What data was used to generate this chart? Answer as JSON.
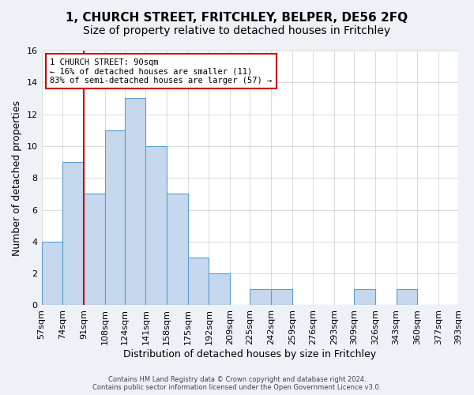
{
  "title": "1, CHURCH STREET, FRITCHLEY, BELPER, DE56 2FQ",
  "subtitle": "Size of property relative to detached houses in Fritchley",
  "xlabel": "Distribution of detached houses by size in Fritchley",
  "ylabel": "Number of detached properties",
  "bar_values": [
    4,
    9,
    7,
    11,
    13,
    10,
    7,
    3,
    2,
    0,
    1,
    1,
    0,
    0,
    0,
    1,
    0,
    1,
    0,
    0
  ],
  "bin_labels": [
    "57sqm",
    "74sqm",
    "91sqm",
    "108sqm",
    "124sqm",
    "141sqm",
    "158sqm",
    "175sqm",
    "192sqm",
    "209sqm",
    "225sqm",
    "242sqm",
    "259sqm",
    "276sqm",
    "293sqm",
    "309sqm",
    "326sqm",
    "343sqm",
    "360sqm",
    "377sqm",
    "393sqm"
  ],
  "bar_color": "#c5d8ed",
  "bar_edge_color": "#5a9fd4",
  "annotation_box_text": "1 CHURCH STREET: 90sqm\n← 16% of detached houses are smaller (11)\n83% of semi-detached houses are larger (57) →",
  "annotation_box_color": "#ffffff",
  "annotation_box_edge_color": "#cc0000",
  "vline_x": 91,
  "vline_color": "#cc0000",
  "ylim": [
    0,
    16
  ],
  "yticks": [
    0,
    2,
    4,
    6,
    8,
    10,
    12,
    14,
    16
  ],
  "bin_edges": [
    57,
    74,
    91,
    108,
    124,
    141,
    158,
    175,
    192,
    209,
    225,
    242,
    259,
    276,
    293,
    309,
    326,
    343,
    360,
    377,
    393
  ],
  "footer_text": "Contains HM Land Registry data © Crown copyright and database right 2024.\nContains public sector information licensed under the Open Government Licence v3.0.",
  "background_color": "#eef2f7",
  "plot_background_color": "#ffffff",
  "grid_color": "#cccccc",
  "title_fontsize": 11,
  "subtitle_fontsize": 10,
  "label_fontsize": 9
}
